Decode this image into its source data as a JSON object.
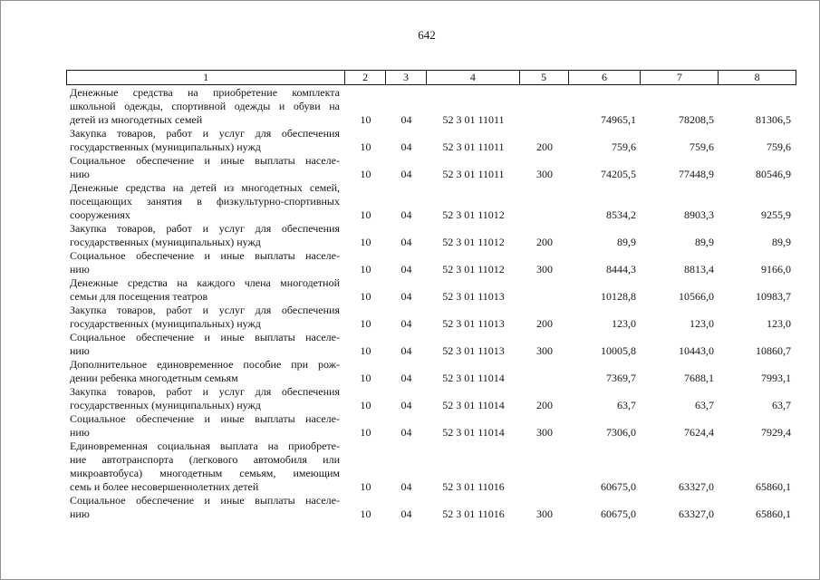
{
  "page": {
    "number": "642"
  },
  "table": {
    "header": [
      "1",
      "2",
      "3",
      "4",
      "5",
      "6",
      "7",
      "8"
    ],
    "rows": [
      {
        "label_lines": [
          "Денежные средства на приобретение комплекта",
          "школьной одежды, спортивной одежды и обуви на",
          "детей из многодетных семей"
        ],
        "cols": [
          "10",
          "04",
          "52 3 01 11011",
          "",
          "74965,1",
          "78208,5",
          "81306,5"
        ]
      },
      {
        "label_lines": [
          "Закупка товаров, работ и услуг для обеспечения",
          "государственных (муниципальных) нужд"
        ],
        "cols": [
          "10",
          "04",
          "52 3 01 11011",
          "200",
          "759,6",
          "759,6",
          "759,6"
        ]
      },
      {
        "label_lines": [
          "Социальное обеспечение и иные выплаты населе-",
          "нию"
        ],
        "cols": [
          "10",
          "04",
          "52 3 01 11011",
          "300",
          "74205,5",
          "77448,9",
          "80546,9"
        ]
      },
      {
        "label_lines": [
          "Денежные средства на детей из многодетных семей,",
          "посещающих занятия в физкультурно-спортивных",
          "сооружениях"
        ],
        "cols": [
          "10",
          "04",
          "52 3 01 11012",
          "",
          "8534,2",
          "8903,3",
          "9255,9"
        ]
      },
      {
        "label_lines": [
          "Закупка товаров, работ и услуг для обеспечения",
          "государственных (муниципальных) нужд"
        ],
        "cols": [
          "10",
          "04",
          "52 3 01 11012",
          "200",
          "89,9",
          "89,9",
          "89,9"
        ]
      },
      {
        "label_lines": [
          "Социальное обеспечение и иные выплаты населе-",
          "нию"
        ],
        "cols": [
          "10",
          "04",
          "52 3 01 11012",
          "300",
          "8444,3",
          "8813,4",
          "9166,0"
        ]
      },
      {
        "label_lines": [
          "Денежные средства на каждого члена многодетной",
          "семьи для посещения театров"
        ],
        "cols": [
          "10",
          "04",
          "52 3 01 11013",
          "",
          "10128,8",
          "10566,0",
          "10983,7"
        ]
      },
      {
        "label_lines": [
          "Закупка товаров, работ и услуг для обеспечения",
          "государственных (муниципальных) нужд"
        ],
        "cols": [
          "10",
          "04",
          "52 3 01 11013",
          "200",
          "123,0",
          "123,0",
          "123,0"
        ]
      },
      {
        "label_lines": [
          "Социальное обеспечение и иные выплаты населе-",
          "нию"
        ],
        "cols": [
          "10",
          "04",
          "52 3 01 11013",
          "300",
          "10005,8",
          "10443,0",
          "10860,7"
        ]
      },
      {
        "label_lines": [
          "Дополнительное единовременное пособие при рож-",
          "дении ребенка многодетным семьям"
        ],
        "cols": [
          "10",
          "04",
          "52 3 01 11014",
          "",
          "7369,7",
          "7688,1",
          "7993,1"
        ]
      },
      {
        "label_lines": [
          "Закупка товаров, работ и услуг для обеспечения",
          "государственных (муниципальных) нужд"
        ],
        "cols": [
          "10",
          "04",
          "52 3 01 11014",
          "200",
          "63,7",
          "63,7",
          "63,7"
        ]
      },
      {
        "label_lines": [
          "Социальное обеспечение и иные выплаты населе-",
          "нию"
        ],
        "cols": [
          "10",
          "04",
          "52 3 01 11014",
          "300",
          "7306,0",
          "7624,4",
          "7929,4"
        ]
      },
      {
        "label_lines": [
          "Единовременная социальная выплата на приобрете-",
          "ние автотранспорта (легкового автомобиля или",
          "микроавтобуса) многодетным семьям, имеющим",
          "семь и более несовершеннолетних детей"
        ],
        "cols": [
          "10",
          "04",
          "52 3 01 11016",
          "",
          "60675,0",
          "63327,0",
          "65860,1"
        ]
      },
      {
        "label_lines": [
          "Социальное обеспечение и иные выплаты населе-",
          "нию"
        ],
        "cols": [
          "10",
          "04",
          "52 3 01 11016",
          "300",
          "60675,0",
          "63327,0",
          "65860,1"
        ]
      }
    ]
  }
}
